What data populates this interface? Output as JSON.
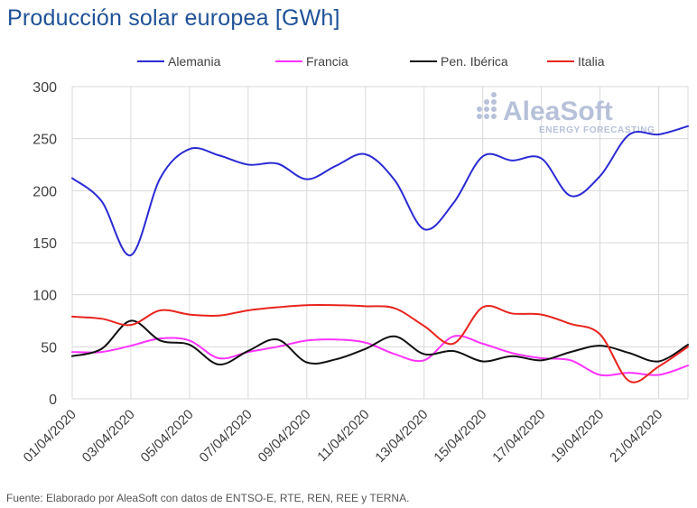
{
  "title": "Producción solar europea [GWh]",
  "source": "Fuente: Elaborado por AleaSoft con datos de ENTSO-E, RTE, REN, REE y TERNA.",
  "watermark": {
    "name": "AleaSoft",
    "tagline": "ENERGY FORECASTING"
  },
  "colors": {
    "Alemania": "#2a2ad4",
    "Francia": "#ff33ff",
    "Pen. Ibérica": "#111111",
    "Italia": "#e8241e",
    "grid": "#d9d9d9"
  },
  "chart_data": {
    "type": "line",
    "title": "Producción solar europea [GWh]",
    "xlabel": "",
    "ylabel": "",
    "ylim": [
      0,
      300
    ],
    "yticks": [
      0,
      50,
      100,
      150,
      200,
      250,
      300
    ],
    "x": [
      "01/04/2020",
      "02/04/2020",
      "03/04/2020",
      "04/04/2020",
      "05/04/2020",
      "06/04/2020",
      "07/04/2020",
      "08/04/2020",
      "09/04/2020",
      "10/04/2020",
      "11/04/2020",
      "12/04/2020",
      "13/04/2020",
      "14/04/2020",
      "15/04/2020",
      "16/04/2020",
      "17/04/2020",
      "18/04/2020",
      "19/04/2020",
      "20/04/2020",
      "21/04/2020",
      "22/04/2020"
    ],
    "xtick_labels": [
      "01/04/2020",
      "03/04/2020",
      "05/04/2020",
      "07/04/2020",
      "09/04/2020",
      "11/04/2020",
      "13/04/2020",
      "15/04/2020",
      "17/04/2020",
      "19/04/2020",
      "21/04/2020"
    ],
    "legend_position": "top",
    "grid": true,
    "series": [
      {
        "name": "Alemania",
        "values": [
          212,
          190,
          138,
          212,
          240,
          234,
          225,
          226,
          211,
          224,
          235,
          210,
          163,
          188,
          233,
          229,
          231,
          195,
          214,
          254,
          254,
          262
        ]
      },
      {
        "name": "Francia",
        "values": [
          45,
          45,
          51,
          58,
          56,
          39,
          45,
          50,
          56,
          57,
          54,
          43,
          37,
          60,
          53,
          44,
          39,
          37,
          23,
          25,
          23,
          32
        ]
      },
      {
        "name": "Pen. Ibérica",
        "values": [
          41,
          48,
          75,
          56,
          52,
          33,
          46,
          57,
          35,
          38,
          48,
          60,
          43,
          46,
          36,
          41,
          37,
          45,
          51,
          44,
          36,
          52
        ]
      },
      {
        "name": "Italia",
        "values": [
          79,
          77,
          71,
          85,
          81,
          80,
          85,
          88,
          90,
          90,
          89,
          87,
          70,
          53,
          88,
          82,
          81,
          72,
          62,
          17,
          31,
          50
        ]
      }
    ]
  }
}
